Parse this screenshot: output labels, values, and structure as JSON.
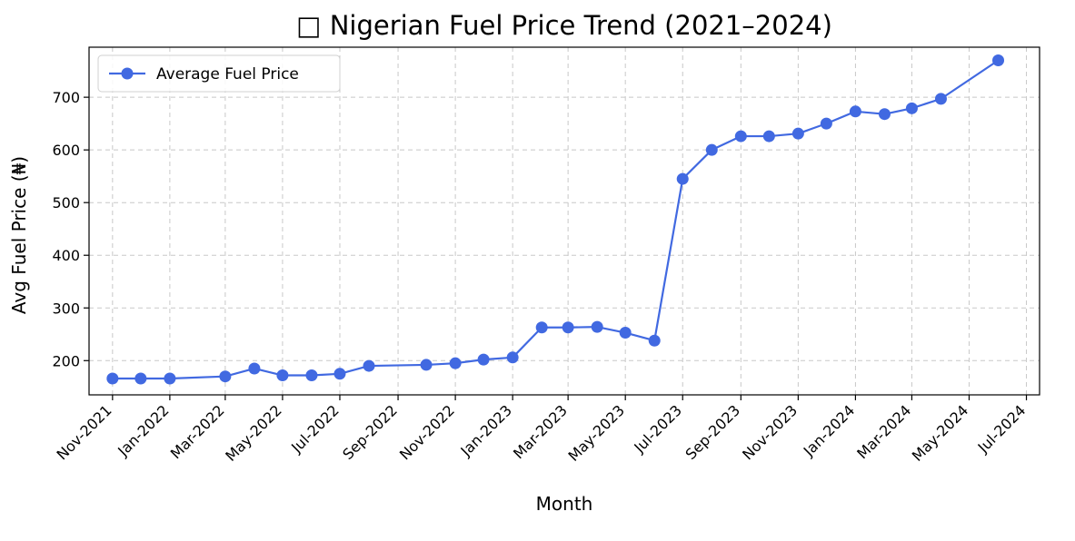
{
  "chart_data": {
    "type": "line",
    "title": "□ Nigerian Fuel Price Trend (2021–2024)",
    "xlabel": "Month",
    "ylabel": "Avg Fuel Price (₦)",
    "x_ticks": [
      "Nov-2021",
      "Jan-2022",
      "Mar-2022",
      "May-2022",
      "Jul-2022",
      "Sep-2022",
      "Nov-2022",
      "Jan-2023",
      "Mar-2023",
      "May-2023",
      "Jul-2023",
      "Sep-2023",
      "Nov-2023",
      "Jan-2024",
      "Mar-2024",
      "May-2024",
      "Jul-2024"
    ],
    "y_ticks": [
      200,
      300,
      400,
      500,
      600,
      700
    ],
    "ylim": [
      135,
      795
    ],
    "xlim": [
      "2021-10-07",
      "2024-07-15"
    ],
    "grid": true,
    "legend_position": "top-left",
    "series": [
      {
        "name": "Average Fuel Price",
        "color": "#4169e1",
        "marker": "circle",
        "x": [
          "2021-11-01",
          "2021-12-01",
          "2022-01-01",
          "2022-03-01",
          "2022-04-01",
          "2022-05-01",
          "2022-06-01",
          "2022-07-01",
          "2022-08-01",
          "2022-10-01",
          "2022-11-01",
          "2022-12-01",
          "2023-01-01",
          "2023-02-01",
          "2023-03-01",
          "2023-04-01",
          "2023-05-01",
          "2023-06-01",
          "2023-07-01",
          "2023-08-01",
          "2023-09-01",
          "2023-10-01",
          "2023-11-01",
          "2023-12-01",
          "2024-01-01",
          "2024-02-01",
          "2024-03-01",
          "2024-04-01",
          "2024-06-01"
        ],
        "values": [
          166,
          166,
          166,
          170,
          185,
          172,
          172,
          175,
          190,
          192,
          195,
          202,
          206,
          263,
          263,
          264,
          253,
          238,
          545,
          600,
          626,
          626,
          631,
          650,
          673,
          668,
          679,
          697,
          770
        ]
      }
    ]
  }
}
